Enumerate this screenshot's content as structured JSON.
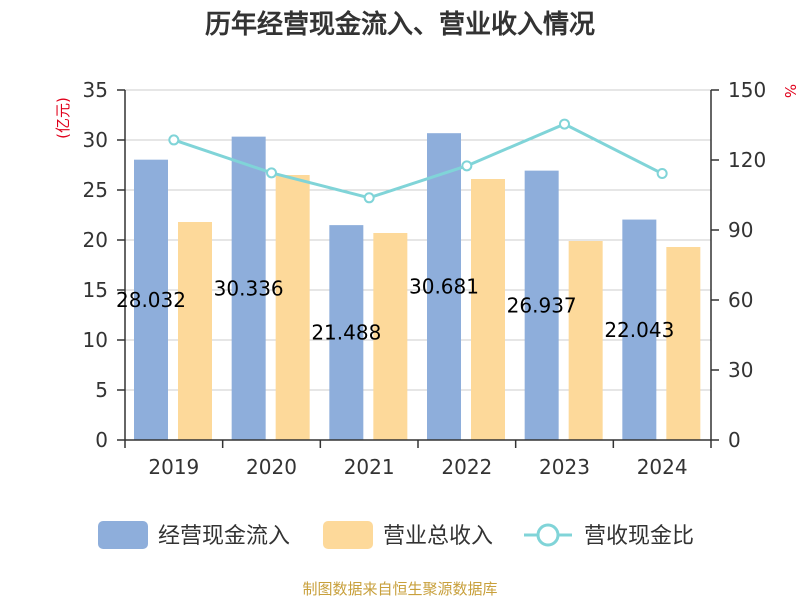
{
  "chart_data": {
    "type": "bar+line",
    "title": "历年经营现金流入、营业收入情况",
    "categories": [
      "2019",
      "2020",
      "2021",
      "2022",
      "2023",
      "2024"
    ],
    "series": [
      {
        "name": "经营现金流入",
        "type": "bar",
        "axis": "left",
        "color": "#8eaedb",
        "values": [
          28.032,
          30.336,
          21.488,
          30.681,
          26.937,
          22.043
        ],
        "labels": [
          "28.032",
          "30.336",
          "21.488",
          "30.681",
          "26.937",
          "22.043"
        ]
      },
      {
        "name": "营业总收入",
        "type": "bar",
        "axis": "left",
        "color": "#fdd99a",
        "values": [
          21.8,
          26.5,
          20.7,
          26.1,
          19.9,
          19.3
        ]
      },
      {
        "name": "营收现金比",
        "type": "line",
        "axis": "right",
        "color": "#80d4d8",
        "values": [
          128.6,
          114.5,
          103.8,
          117.5,
          135.4,
          114.2
        ]
      }
    ],
    "ylabel_left": "(亿元)",
    "ylabel_right": "%",
    "ylim_left": [
      0,
      35
    ],
    "ylim_right": [
      0,
      150
    ],
    "yticks_left": [
      "0",
      "5",
      "10",
      "15",
      "20",
      "25",
      "30",
      "35"
    ],
    "yticks_right": [
      "0",
      "30",
      "60",
      "90",
      "120",
      "150"
    ],
    "legend_position": "bottom",
    "grid": true
  },
  "footer": {
    "source": "制图数据来自恒生聚源数据库"
  }
}
